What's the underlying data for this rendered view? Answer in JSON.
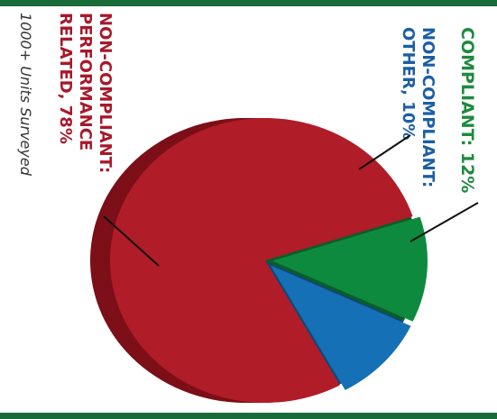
{
  "chart_data": {
    "type": "pie",
    "title": "",
    "slices": [
      {
        "label": "COMPLIANT: 12%",
        "value": 12,
        "color": "#0e8a3e",
        "side": "#0b5d2b"
      },
      {
        "label": "NON-COMPLIANT: OTHER, 10%",
        "value": 10,
        "color": "#1670b5",
        "side": "#0e4878"
      },
      {
        "label": "NON-COMPLIANT: PERFORMANCE RELATED, 78%",
        "value": 78,
        "color": "#b01c27",
        "side": "#7c0f18"
      }
    ],
    "labels": {
      "compliant": [
        "COMPLIANT: 12%"
      ],
      "other": [
        "NON-COMPLIANT:",
        "OTHER, 10%"
      ],
      "performance": [
        "NON-COMPLIANT:",
        "PERFORMANCE",
        "RELATED, 78%"
      ]
    },
    "label_colors": {
      "compliant": "#1f8a3f",
      "other": "#1b5ea6",
      "performance": "#a8182a"
    },
    "note": "1000+ Units Surveyed"
  }
}
